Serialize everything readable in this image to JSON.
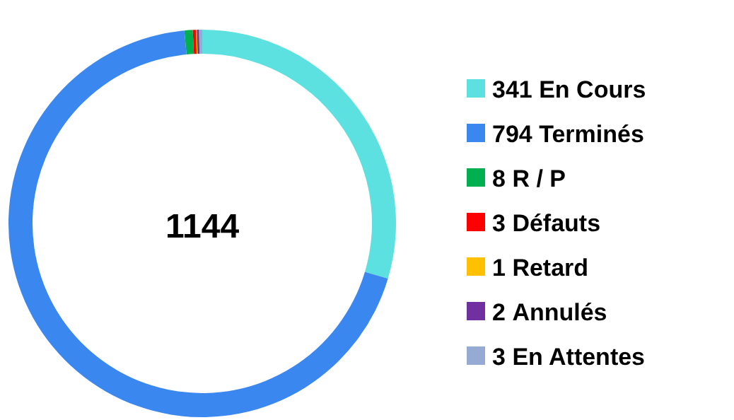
{
  "chart_data": {
    "type": "donut",
    "categories": [
      "En Cours",
      "Terminés",
      "R / P",
      "Défauts",
      "Retard",
      "Annulés",
      "En Attentes"
    ],
    "values": [
      341,
      794,
      8,
      3,
      1,
      2,
      3
    ],
    "colors": [
      "#5ce1e0",
      "#3a87f0",
      "#00b050",
      "#ff0000",
      "#ffc000",
      "#7030a0",
      "#95abd3"
    ],
    "data_labels": true,
    "legend": "right",
    "annotations": [
      "1144"
    ]
  }
}
